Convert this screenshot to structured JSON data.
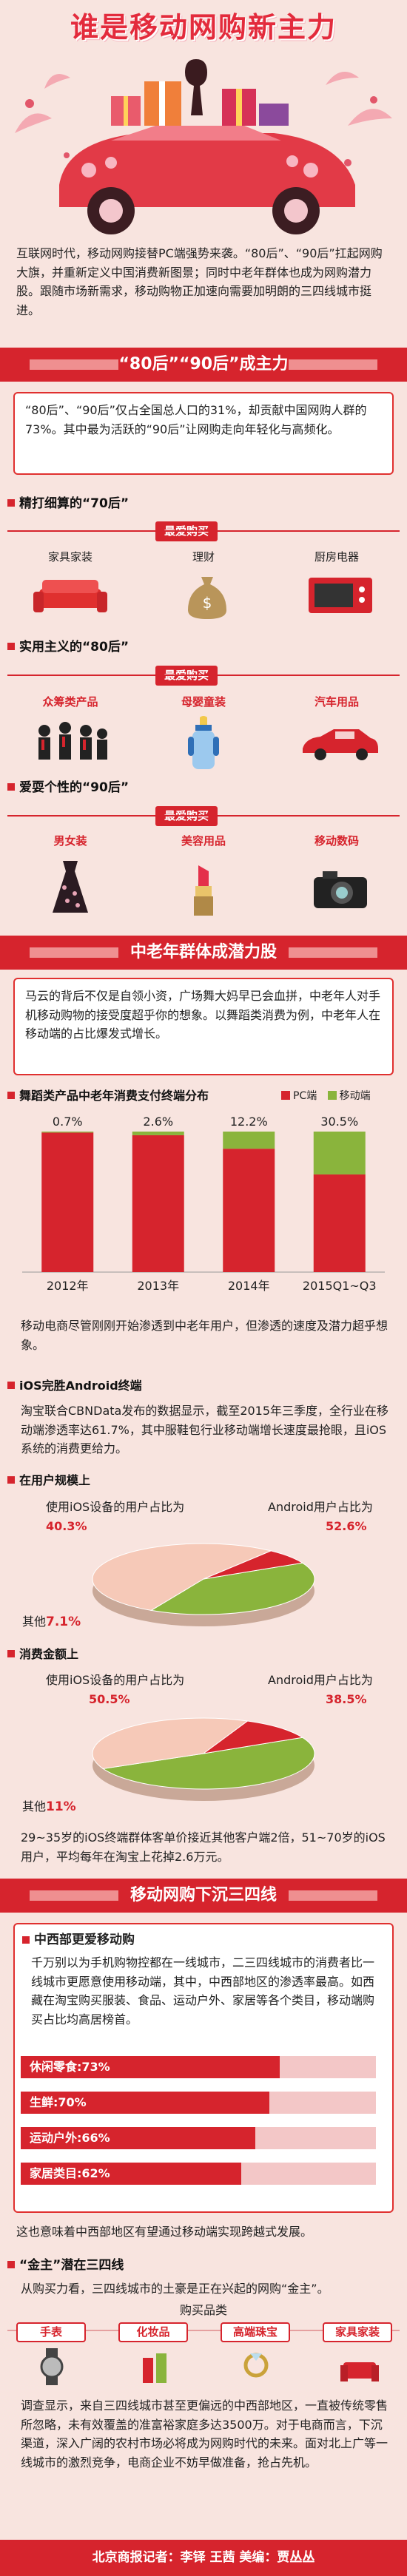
{
  "title": "谁是移动网购新主力",
  "intro": "互联网时代，移动网购接替PC端强势来袭。“80后”、“90后”扛起网购大旗，并重新定义中国消费新图景；同时中老年群体也成为网购潜力股。跟随市场新需求，移动购物正加速向需要加明朗的三四线城市挺进。",
  "sections": {
    "s1_title": "“80后”“90后”成主力",
    "s1_text": "“80后”、“90后”仅占全国总人口的31%，却贡献中国网购人群的73%。其中最为活跃的“90后”让网购走向年轻化与高频化。",
    "groups": [
      {
        "head": "精打细算的“70后”",
        "tag": "最爱购买",
        "items": [
          {
            "label": "家具家装",
            "icon": "sofa-icon"
          },
          {
            "label": "理财",
            "icon": "money-bag-icon"
          },
          {
            "label": "厨房电器",
            "icon": "microwave-icon"
          }
        ]
      },
      {
        "head": "实用主义的“80后”",
        "tag": "最爱购买",
        "items": [
          {
            "label": "众筹类产品",
            "icon": "crowd-icon"
          },
          {
            "label": "母婴童装",
            "icon": "baby-bottle-icon"
          },
          {
            "label": "汽车用品",
            "icon": "car-icon"
          }
        ]
      },
      {
        "head": "爱耍个性的“90后”",
        "tag": "最爱购买",
        "items": [
          {
            "label": "男女装",
            "icon": "dress-icon"
          },
          {
            "label": "美容用品",
            "icon": "lipstick-icon"
          },
          {
            "label": "移动数码",
            "icon": "camera-icon"
          }
        ]
      }
    ],
    "s2_title": "中老年群体成潜力股",
    "s2_text": "马云的背后不仅是自领小资，广场舞大妈早已会血拼，中老年人对手机移动购物的接受度超乎你的想象。以舞蹈类消费为例，中老年人在移动端的占比爆发式增长。",
    "chart_head": "舞蹈类产品中老年消费支付终端分布",
    "chart_after": "移动电商尽管刚刚开始渗透到中老年用户，但渗透的速度及潜力超乎想象。",
    "ios_head": "iOS完胜Android终端",
    "ios_text": "淘宝联合CBNData发布的数据显示，截至2015年三季度，全行业在移动端渗透率达61.7%，其中服鞋包行业移动端增长速度最抢眼，且iOS系统的消费更给力。",
    "pie1_head": "在用户规模上",
    "pie2_head": "消费金额上",
    "pie_after": "29~35岁的iOS终端群体客单价接近其他客户端2倍，51~70岁的iOS用户，平均每年在淘宝上花掉2.6万元。",
    "s3_title": "移动网购下沉三四线",
    "mid_head": "中西部更爱移动购",
    "mid_text": "千万别以为手机购物控都在一线城市，二三四线城市的消费者比一线城市更愿意使用移动端，其中，中西部地区的渗透率最高。如西藏在淘宝购买服装、食品、运动户外、家居等各个类目，移动端购买占比均高居榜首。",
    "after_bars": "这也意味着中西部地区有望通过移动端实现跨越式发展。",
    "gold_head": "“金主”潜在三四线",
    "gold_text": "从购买力看，三四线城市的土豪是正在兴起的网购“金主”。",
    "buy_title": "购买品类",
    "products": [
      "手表",
      "化妆品",
      "高端珠宝",
      "家具家装"
    ],
    "final_text": "调查显示，来自三四线城市甚至更偏远的中西部地区，一直被传统零售所忽略，未有效覆盖的准富裕家庭多达3500万。对于电商而言，下沉渠道，深入广阔的农村市场必将成为网购时代的未来。面对北上广等一线城市的激烈竞争，电商企业不妨早做准备，抢占先机。",
    "footer": "北京商报记者：李铎 王茜  美编：贾丛丛"
  },
  "chart_data": [
    {
      "type": "bar",
      "title": "舞蹈类产品中老年消费支付终端分布",
      "categories": [
        "2012年",
        "2013年",
        "2014年",
        "2015Q1~Q3"
      ],
      "series": [
        {
          "name": "PC端",
          "values": [
            99.3,
            97.4,
            87.8,
            69.5
          ]
        },
        {
          "name": "移动端",
          "values": [
            0.7,
            2.6,
            12.2,
            30.5
          ]
        }
      ],
      "data_labels": [
        "0.7%",
        "2.6%",
        "12.2%",
        "30.5%"
      ],
      "ylim": [
        0,
        100
      ],
      "stacked": true,
      "legend": "top-right",
      "colors": {
        "PC端": "#d6242d",
        "移动端": "#8ab43c"
      }
    },
    {
      "type": "pie",
      "title": "在用户规模上",
      "slices": [
        {
          "label": "使用iOS设备的用户占比为",
          "value": 40.3,
          "text": "40.3%",
          "color": "#8ab43c"
        },
        {
          "label": "Android用户占比为",
          "value": 52.6,
          "text": "52.6%",
          "color": "#f6c9b8"
        },
        {
          "label": "其他",
          "value": 7.1,
          "text": "7.1%",
          "color": "#d6242d"
        }
      ]
    },
    {
      "type": "pie",
      "title": "消费金额上",
      "slices": [
        {
          "label": "使用iOS设备的用户占比为",
          "value": 50.5,
          "text": "50.5%",
          "color": "#8ab43c"
        },
        {
          "label": "Android用户占比为",
          "value": 38.5,
          "text": "38.5%",
          "color": "#f6c9b8"
        },
        {
          "label": "其他",
          "value": 11,
          "text": "11%",
          "color": "#d6242d"
        }
      ]
    },
    {
      "type": "bar",
      "orientation": "horizontal",
      "categories": [
        "休闲零食",
        "生鲜",
        "运动户外",
        "家居类目"
      ],
      "values": [
        73,
        70,
        66,
        62
      ],
      "data_labels": [
        "休闲零食:73%",
        "生鲜:70%",
        "运动户外:66%",
        "家居类目:62%"
      ],
      "xlim": [
        0,
        100
      ]
    }
  ]
}
